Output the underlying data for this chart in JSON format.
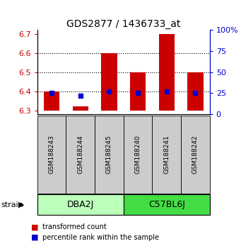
{
  "title": "GDS2877 / 1436733_at",
  "samples": [
    "GSM188243",
    "GSM188244",
    "GSM188245",
    "GSM188240",
    "GSM188241",
    "GSM188242"
  ],
  "groups": [
    {
      "label": "DBA2J",
      "count": 3,
      "color": "#bbffbb"
    },
    {
      "label": "C57BL6J",
      "count": 3,
      "color": "#44dd44"
    }
  ],
  "red_bar_tops": [
    6.4,
    6.32,
    6.6,
    6.5,
    6.7,
    6.5
  ],
  "red_bar_bottom": 6.3,
  "blue_y_vals": [
    6.39,
    6.376,
    6.4,
    6.39,
    6.4,
    6.39
  ],
  "bar_color": "#cc0000",
  "blue_color": "#0000cc",
  "ylim_left": [
    6.28,
    6.72
  ],
  "yticks_left": [
    6.3,
    6.4,
    6.5,
    6.6,
    6.7
  ],
  "ylim_right": [
    0,
    100
  ],
  "yticks_right": [
    0,
    25,
    50,
    75,
    100
  ],
  "ytick_right_labels": [
    "0",
    "25",
    "50",
    "75",
    "100%"
  ],
  "hlines": [
    6.4,
    6.5,
    6.6
  ],
  "legend_red": "transformed count",
  "legend_blue": "percentile rank within the sample",
  "strain_label": "strain",
  "sample_box_color": "#cccccc",
  "bar_width": 0.55
}
